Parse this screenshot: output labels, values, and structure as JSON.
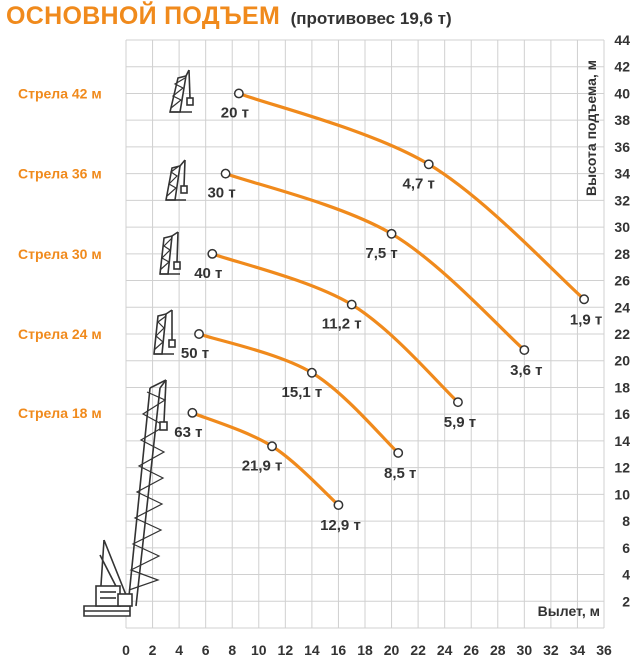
{
  "title": {
    "main": "ОСНОВНОЙ ПОДЪЕМ",
    "sub": "(противовес 19,6 т)"
  },
  "colors": {
    "curve": "#f08a1c",
    "grid": "#d0d0d0",
    "text": "#333333",
    "boom_label": "#f08a1c"
  },
  "chart_data": {
    "type": "line",
    "xlabel": "Вылет, м",
    "ylabel": "Высота подъема, м",
    "xlim": [
      0,
      36
    ],
    "ylim": [
      0,
      44
    ],
    "x_ticks": [
      "0",
      "2",
      "4",
      "6",
      "8",
      "10",
      "12",
      "14",
      "16",
      "18",
      "20",
      "22",
      "24",
      "26",
      "28",
      "30",
      "32",
      "34",
      "36"
    ],
    "y_ticks": [
      "2",
      "4",
      "6",
      "8",
      "10",
      "12",
      "14",
      "16",
      "18",
      "20",
      "22",
      "24",
      "26",
      "28",
      "30",
      "32",
      "34",
      "36",
      "38",
      "40",
      "42",
      "44"
    ],
    "grid": true,
    "series": [
      {
        "name": "Стрела 42 м",
        "points": [
          {
            "x": 8.5,
            "y": 40,
            "label": "20 т"
          },
          {
            "x": 22.8,
            "y": 34.7,
            "label": "4,7 т"
          },
          {
            "x": 34.5,
            "y": 24.6,
            "label": "1,9 т"
          }
        ]
      },
      {
        "name": "Стрела 36 м",
        "points": [
          {
            "x": 7.5,
            "y": 34,
            "label": "30 т"
          },
          {
            "x": 20,
            "y": 29.5,
            "label": "7,5 т"
          },
          {
            "x": 30,
            "y": 20.8,
            "label": "3,6 т"
          }
        ]
      },
      {
        "name": "Стрела 30 м",
        "points": [
          {
            "x": 6.5,
            "y": 28,
            "label": "40 т"
          },
          {
            "x": 17,
            "y": 24.2,
            "label": "11,2 т"
          },
          {
            "x": 25,
            "y": 16.9,
            "label": "5,9 т"
          }
        ]
      },
      {
        "name": "Стрела 24 м",
        "points": [
          {
            "x": 5.5,
            "y": 22,
            "label": "50 т"
          },
          {
            "x": 14,
            "y": 19.1,
            "label": "15,1 т"
          },
          {
            "x": 20.5,
            "y": 13.1,
            "label": "8,5 т"
          }
        ]
      },
      {
        "name": "Стрела 18 м",
        "points": [
          {
            "x": 5,
            "y": 16.1,
            "label": "63 т"
          },
          {
            "x": 11,
            "y": 13.6,
            "label": "21,9 т"
          },
          {
            "x": 16,
            "y": 9.2,
            "label": "12,9 т"
          }
        ]
      }
    ]
  }
}
